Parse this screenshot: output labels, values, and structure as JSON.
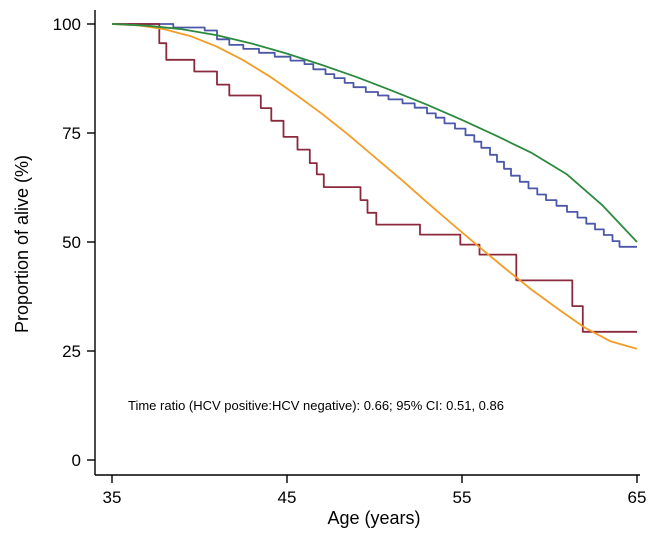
{
  "chart_data": {
    "type": "line",
    "title": "",
    "xlabel": "Age (years)",
    "ylabel": "Proportion of alive (%)",
    "xlim": [
      35,
      65
    ],
    "ylim": [
      0,
      100
    ],
    "x_ticks": [
      35,
      45,
      55,
      65
    ],
    "y_ticks": [
      0,
      25,
      50,
      75,
      100
    ],
    "grid": false,
    "legend": "none",
    "annotation": "Time ratio (HCV positive:HCV negative): 0.66; 95% CI: 0.51, 0.86",
    "series": [
      {
        "color": "#4b57a8",
        "step": true,
        "points": [
          [
            35,
            100
          ],
          [
            38.5,
            100
          ],
          [
            38.5,
            99.2
          ],
          [
            40.3,
            99.2
          ],
          [
            40.3,
            98.5
          ],
          [
            41,
            98.5
          ],
          [
            41,
            96.5
          ],
          [
            41.7,
            96.5
          ],
          [
            41.7,
            95.2
          ],
          [
            42.5,
            95.2
          ],
          [
            42.5,
            94.3
          ],
          [
            43.4,
            94.3
          ],
          [
            43.4,
            93.4
          ],
          [
            44.3,
            93.4
          ],
          [
            44.3,
            92.5
          ],
          [
            45.2,
            92.5
          ],
          [
            45.2,
            91.6
          ],
          [
            46,
            91.6
          ],
          [
            46,
            90.8
          ],
          [
            46.5,
            90.8
          ],
          [
            46.5,
            89.6
          ],
          [
            47.2,
            89.6
          ],
          [
            47.2,
            88.5
          ],
          [
            47.7,
            88.5
          ],
          [
            47.7,
            87.6
          ],
          [
            48.3,
            87.6
          ],
          [
            48.3,
            86.5
          ],
          [
            48.8,
            86.5
          ],
          [
            48.8,
            85.5
          ],
          [
            49.5,
            85.5
          ],
          [
            49.5,
            84.4
          ],
          [
            50.2,
            84.4
          ],
          [
            50.2,
            83.6
          ],
          [
            50.8,
            83.6
          ],
          [
            50.8,
            82.7
          ],
          [
            51.6,
            82.7
          ],
          [
            51.6,
            81.8
          ],
          [
            52.3,
            81.8
          ],
          [
            52.3,
            80.8
          ],
          [
            53,
            80.8
          ],
          [
            53,
            79.5
          ],
          [
            53.5,
            79.5
          ],
          [
            53.5,
            78.5
          ],
          [
            54,
            78.5
          ],
          [
            54,
            77.2
          ],
          [
            54.6,
            77.2
          ],
          [
            54.6,
            76
          ],
          [
            55.2,
            76
          ],
          [
            55.2,
            74.5
          ],
          [
            55.7,
            74.5
          ],
          [
            55.7,
            73
          ],
          [
            56.1,
            73
          ],
          [
            56.1,
            71.6
          ],
          [
            56.6,
            71.6
          ],
          [
            56.6,
            70
          ],
          [
            57,
            70
          ],
          [
            57,
            68.4
          ],
          [
            57.4,
            68.4
          ],
          [
            57.4,
            66.8
          ],
          [
            57.8,
            66.8
          ],
          [
            57.8,
            65.2
          ],
          [
            58.3,
            65.2
          ],
          [
            58.3,
            63.8
          ],
          [
            58.8,
            63.8
          ],
          [
            58.8,
            62.3
          ],
          [
            59.3,
            62.3
          ],
          [
            59.3,
            60.9
          ],
          [
            59.8,
            60.9
          ],
          [
            59.8,
            59.6
          ],
          [
            60.4,
            59.6
          ],
          [
            60.4,
            58.3
          ],
          [
            61,
            58.3
          ],
          [
            61,
            56.9
          ],
          [
            61.6,
            56.9
          ],
          [
            61.6,
            55.6
          ],
          [
            62.1,
            55.6
          ],
          [
            62.1,
            54.2
          ],
          [
            62.6,
            54.2
          ],
          [
            62.6,
            52.9
          ],
          [
            63.1,
            52.9
          ],
          [
            63.1,
            51.6
          ],
          [
            63.6,
            51.6
          ],
          [
            63.6,
            50.2
          ],
          [
            64,
            50.2
          ],
          [
            64,
            48.9
          ],
          [
            65,
            48.9
          ]
        ]
      },
      {
        "color": "#8b2a3c",
        "step": true,
        "points": [
          [
            35,
            100
          ],
          [
            37.7,
            100
          ],
          [
            37.7,
            95.6
          ],
          [
            38.1,
            95.6
          ],
          [
            38.1,
            91.8
          ],
          [
            39.7,
            91.8
          ],
          [
            39.7,
            89.1
          ],
          [
            41,
            89.1
          ],
          [
            41,
            86.1
          ],
          [
            41.7,
            86.1
          ],
          [
            41.7,
            83.6
          ],
          [
            43.5,
            83.6
          ],
          [
            43.5,
            80.7
          ],
          [
            44.1,
            80.7
          ],
          [
            44.1,
            77.8
          ],
          [
            44.8,
            77.8
          ],
          [
            44.8,
            74.1
          ],
          [
            45.6,
            74.1
          ],
          [
            45.6,
            71.2
          ],
          [
            46.3,
            71.2
          ],
          [
            46.3,
            68.1
          ],
          [
            46.7,
            68.1
          ],
          [
            46.7,
            65.5
          ],
          [
            47.1,
            65.5
          ],
          [
            47.1,
            62.6
          ],
          [
            49.2,
            62.6
          ],
          [
            49.2,
            59.6
          ],
          [
            49.6,
            59.6
          ],
          [
            49.6,
            56.7
          ],
          [
            50.1,
            56.7
          ],
          [
            50.1,
            54
          ],
          [
            52.6,
            54
          ],
          [
            52.6,
            51.7
          ],
          [
            54.9,
            51.7
          ],
          [
            54.9,
            49.4
          ],
          [
            56,
            49.4
          ],
          [
            56,
            47.1
          ],
          [
            58.1,
            47.1
          ],
          [
            58.1,
            41.2
          ],
          [
            61.3,
            41.2
          ],
          [
            61.3,
            35.3
          ],
          [
            61.9,
            35.3
          ],
          [
            61.9,
            29.4
          ],
          [
            65,
            29.4
          ]
        ]
      },
      {
        "color": "#f39c26",
        "step": false,
        "points": [
          [
            35,
            100
          ],
          [
            36.5,
            99.7
          ],
          [
            38,
            98.8
          ],
          [
            39.5,
            97.2
          ],
          [
            41,
            94.8
          ],
          [
            42.5,
            91.7
          ],
          [
            44,
            88
          ],
          [
            45.5,
            83.8
          ],
          [
            47,
            79.4
          ],
          [
            48.5,
            74.6
          ],
          [
            50,
            69.5
          ],
          [
            51.5,
            64.4
          ],
          [
            53,
            59.1
          ],
          [
            54.5,
            53.9
          ],
          [
            56,
            48.8
          ],
          [
            57.5,
            43.8
          ],
          [
            59,
            39
          ],
          [
            60.5,
            34.6
          ],
          [
            62,
            30.4
          ],
          [
            63.5,
            27.2
          ],
          [
            65,
            25.5
          ]
        ]
      },
      {
        "color": "#2b8a3e",
        "step": false,
        "points": [
          [
            35,
            100
          ],
          [
            37,
            99.6
          ],
          [
            39,
            98.8
          ],
          [
            41,
            97.4
          ],
          [
            43,
            95.5
          ],
          [
            45,
            93.2
          ],
          [
            47,
            90.6
          ],
          [
            49,
            87.8
          ],
          [
            51,
            84.7
          ],
          [
            53,
            81.5
          ],
          [
            55,
            78
          ],
          [
            57,
            74.3
          ],
          [
            59,
            70.4
          ],
          [
            61,
            65.5
          ],
          [
            63,
            58.5
          ],
          [
            65,
            50
          ]
        ]
      }
    ]
  }
}
